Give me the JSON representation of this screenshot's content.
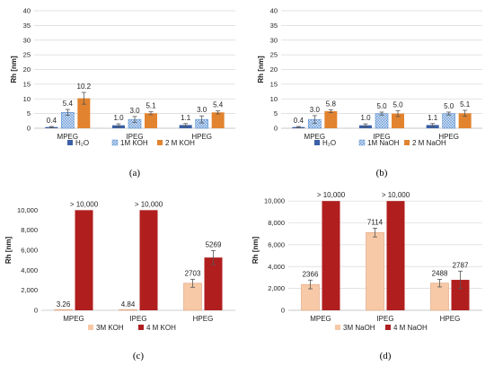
{
  "chart_data": [
    {
      "type": "bar",
      "panel_label": "(a)",
      "ylabel": "Rh [nm]",
      "ylim": [
        0,
        40
      ],
      "yticks": [
        0,
        5,
        10,
        15,
        20,
        25,
        30,
        35,
        40
      ],
      "categories": [
        "MPEG",
        "IPEG",
        "HPEG"
      ],
      "grid": true,
      "legend_position": "bottom",
      "series": [
        {
          "name": "H₂O",
          "values": [
            0.4,
            1.0,
            1.1
          ],
          "labels": [
            "0.4",
            "1.0",
            "1.1"
          ],
          "errors": [
            0.2,
            0.5,
            0.5
          ],
          "color": "#3a5fa6"
        },
        {
          "name": "1M KOH",
          "values": [
            5.4,
            3.0,
            3.0
          ],
          "labels": [
            "5.4",
            "3.0",
            "3.0"
          ],
          "errors": [
            1.0,
            1.0,
            1.2
          ],
          "color": "#b9d3f0"
        },
        {
          "name": "2 M KOH",
          "values": [
            10.2,
            5.1,
            5.4
          ],
          "labels": [
            "10.2",
            "5.1",
            "5.4"
          ],
          "errors": [
            2.0,
            0.5,
            0.5
          ],
          "color": "#e2832f"
        }
      ]
    },
    {
      "type": "bar",
      "panel_label": "(b)",
      "ylabel": "Rh [nm]",
      "ylim": [
        0,
        40
      ],
      "yticks": [
        0,
        5,
        10,
        15,
        20,
        25,
        30,
        35,
        40
      ],
      "categories": [
        "MPEG",
        "IPEG",
        "HPEG"
      ],
      "grid": true,
      "legend_position": "bottom",
      "series": [
        {
          "name": "H₂O",
          "values": [
            0.4,
            1.0,
            1.1
          ],
          "labels": [
            "0.4",
            "1.0",
            "1.1"
          ],
          "errors": [
            0.2,
            0.5,
            0.5
          ],
          "color": "#3a5fa6"
        },
        {
          "name": "1M NaOH",
          "values": [
            3.0,
            5.0,
            5.0
          ],
          "labels": [
            "3.0",
            "5.0",
            "5.0"
          ],
          "errors": [
            1.3,
            0.5,
            0.5
          ],
          "color": "#b9d3f0"
        },
        {
          "name": "2 M NaOH",
          "values": [
            5.8,
            5.0,
            5.1
          ],
          "labels": [
            "5.8",
            "5.0",
            "5.1"
          ],
          "errors": [
            0.5,
            1.0,
            1.0
          ],
          "color": "#e2832f"
        }
      ]
    },
    {
      "type": "bar",
      "panel_label": "(c)",
      "ylabel": "Rh [nm]",
      "ylim": [
        0,
        12000
      ],
      "yticks": [
        0,
        2000,
        4000,
        6000,
        8000,
        10000
      ],
      "categories": [
        "MPEG",
        "IPEG",
        "HPEG"
      ],
      "grid": false,
      "legend_position": "bottom",
      "series": [
        {
          "name": "3M KOH",
          "values": [
            3.26,
            4.84,
            2703
          ],
          "labels": [
            "3.26",
            "4.84",
            "2703"
          ],
          "errors": [
            0,
            0,
            400
          ],
          "color": "#f7c9a6"
        },
        {
          "name": "4 M KOH",
          "values": [
            10000,
            10000,
            5269
          ],
          "labels": [
            "> 10,000",
            "> 10,000",
            "5269"
          ],
          "errors": [
            0,
            0,
            700
          ],
          "color": "#b01e1e"
        }
      ]
    },
    {
      "type": "bar",
      "panel_label": "(d)",
      "ylabel": "Rh [nm]",
      "ylim": [
        0,
        11000
      ],
      "yticks": [
        0,
        2000,
        4000,
        6000,
        8000,
        10000
      ],
      "categories": [
        "MPEG",
        "IPEG",
        "HPEG"
      ],
      "grid": true,
      "legend_position": "bottom",
      "series": [
        {
          "name": "3M NaOH",
          "values": [
            2366,
            7114,
            2488
          ],
          "labels": [
            "2366",
            "7114",
            "2488"
          ],
          "errors": [
            400,
            400,
            350
          ],
          "color": "#f7c9a6"
        },
        {
          "name": "4 M NaOH",
          "values": [
            10000,
            10000,
            2787
          ],
          "labels": [
            "> 10,000",
            "> 10,000",
            "2787"
          ],
          "errors": [
            0,
            0,
            800
          ],
          "color": "#b01e1e"
        }
      ]
    }
  ]
}
